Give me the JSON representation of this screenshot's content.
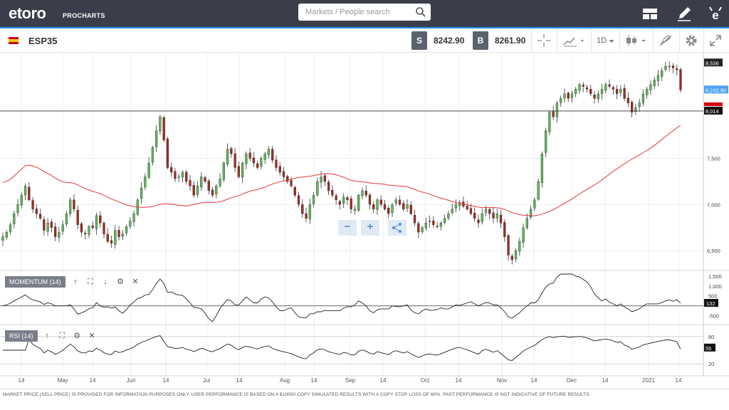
{
  "header": {
    "logo_text": "etoro",
    "logo_sub": "PROCHARTS",
    "search_placeholder": "Markets / People search",
    "icons": [
      "layout-icon",
      "pencil-icon",
      "etoro-profile-icon"
    ]
  },
  "toolbar": {
    "symbol": "ESP35",
    "sell_label": "S",
    "sell_price": "8242.90",
    "buy_label": "B",
    "buy_price": "8261.90",
    "timeframe": "1D",
    "icons": [
      "crosshair-icon",
      "chart-type-icon",
      "timeframe-dropdown",
      "candles-icon",
      "draw-icon",
      "settings-icon",
      "fullscreen-icon"
    ]
  },
  "colors": {
    "up": "#5cb85c",
    "down": "#a12a1e",
    "ma": "#e53935",
    "accent": "#1e90ff",
    "topbar": "#3b3e4a"
  },
  "price_axis": {
    "ticks": [
      "8,536",
      "7,500",
      "7,000",
      "6,500"
    ],
    "current_label": "8,242.90",
    "hline_label": "8,014"
  },
  "x_axis": {
    "ticks": [
      "14",
      "May",
      "14",
      "Jun",
      "14",
      "Jul",
      "14",
      "Aug",
      "14",
      "Sep",
      "14",
      "Oct",
      "14",
      "Nov",
      "14",
      "Dec",
      "14",
      "2021",
      "14"
    ]
  },
  "momentum": {
    "label": "MOMENTUM (14)",
    "ticks": [
      "1,500",
      "1,000",
      "500",
      "-500"
    ],
    "value": "132"
  },
  "rsi": {
    "label": "RSI (14)",
    "ticks": [
      "80",
      "20"
    ],
    "value": "55"
  },
  "zoom": {
    "minus": "−",
    "plus": "+"
  },
  "footer": {
    "disclaimer": "MARKET PRICE (SELL PRICE) IS PROVIDED FOR INFORMATION PURPOSES ONLY. USER PERFORMANCE IS BASED ON A $10000 COPY SIMULATED RESULTS WITH A COPY STOP LOSS OF 60%. PAST PERFORMANCE IS NOT INDICATIVE OF FUTURE RESULTS."
  },
  "chart_data": {
    "type": "candlestick",
    "symbol": "ESP35",
    "y_range": [
      6300,
      8600
    ],
    "closes": [
      6650,
      6700,
      6780,
      6900,
      7000,
      7100,
      7200,
      7050,
      6950,
      6900,
      6850,
      6720,
      6800,
      6750,
      6650,
      6700,
      6780,
      6900,
      7050,
      6950,
      6780,
      6700,
      6680,
      6760,
      6750,
      6880,
      6800,
      6680,
      6600,
      6580,
      6720,
      6650,
      6680,
      6760,
      6820,
      6900,
      7050,
      7180,
      7300,
      7450,
      7620,
      7800,
      7950,
      7700,
      7400,
      7350,
      7280,
      7300,
      7350,
      7250,
      7200,
      7100,
      7200,
      7300,
      7250,
      7150,
      7100,
      7200,
      7280,
      7450,
      7600,
      7550,
      7400,
      7300,
      7450,
      7550,
      7500,
      7450,
      7400,
      7500,
      7550,
      7600,
      7480,
      7400,
      7350,
      7300,
      7250,
      7200,
      7100,
      7000,
      6900,
      6850,
      7000,
      7100,
      7250,
      7300,
      7250,
      7150,
      7100,
      7050,
      7000,
      7080,
      7050,
      6950,
      6950,
      7100,
      7150,
      7100,
      7000,
      6950,
      7050,
      7000,
      6950,
      6900,
      7000,
      7050,
      7000,
      6950,
      7000,
      6900,
      6800,
      6700,
      6750,
      6800,
      6820,
      6780,
      6760,
      6800,
      6850,
      6900,
      6950,
      7000,
      7020,
      6980,
      6950,
      6900,
      6850,
      6800,
      6900,
      6950,
      6900,
      6850,
      6900,
      6800,
      6650,
      6450,
      6400,
      6500,
      6600,
      6750,
      6850,
      6950,
      7050,
      7250,
      7550,
      7800,
      8000,
      7950,
      8100,
      8150,
      8200,
      8150,
      8200,
      8250,
      8300,
      8280,
      8250,
      8200,
      8150,
      8200,
      8250,
      8300,
      8280,
      8250,
      8200,
      8250,
      8150,
      8100,
      8000,
      8050,
      8100,
      8200,
      8250,
      8300,
      8350,
      8400,
      8450,
      8500,
      8500,
      8480,
      8460,
      8242.9
    ],
    "ma_period": 50,
    "horizontal_line": 8014
  }
}
